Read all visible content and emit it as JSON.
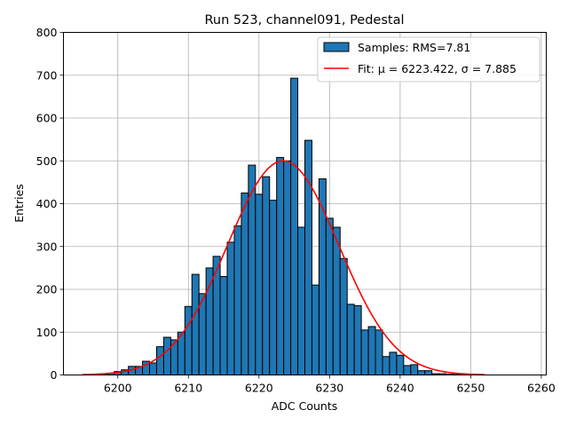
{
  "chart_data": {
    "type": "bar",
    "title": "Run 523, channel091, Pedestal",
    "xlabel": "ADC Counts",
    "ylabel": "Entries",
    "xlim": [
      6192.3,
      6260.7
    ],
    "ylim": [
      0,
      800
    ],
    "xticks": [
      6200,
      6210,
      6220,
      6230,
      6240,
      6250,
      6260
    ],
    "yticks": [
      0,
      100,
      200,
      300,
      400,
      500,
      600,
      700,
      800
    ],
    "grid": true,
    "legend_position": "top-right",
    "bin_width": 1,
    "bins": [
      6197,
      6198,
      6199,
      6200,
      6201,
      6202,
      6203,
      6204,
      6205,
      6206,
      6207,
      6208,
      6209,
      6210,
      6211,
      6212,
      6213,
      6214,
      6215,
      6216,
      6217,
      6218,
      6219,
      6220,
      6221,
      6222,
      6223,
      6224,
      6225,
      6226,
      6227,
      6228,
      6229,
      6230,
      6231,
      6232,
      6233,
      6234,
      6235,
      6236,
      6237,
      6238,
      6239,
      6240,
      6241,
      6242,
      6243,
      6244,
      6245,
      6246,
      6247,
      6248
    ],
    "values": [
      2,
      2,
      4,
      8,
      12,
      20,
      20,
      32,
      28,
      66,
      88,
      82,
      100,
      160,
      235,
      190,
      250,
      277,
      230,
      310,
      348,
      425,
      490,
      422,
      463,
      408,
      508,
      500,
      693,
      345,
      548,
      210,
      458,
      366,
      345,
      272,
      165,
      162,
      105,
      113,
      105,
      43,
      53,
      46,
      22,
      24,
      10,
      10,
      3,
      3,
      2,
      1
    ],
    "series": [
      {
        "name": "Samples: RMS=7.81",
        "kind": "histogram",
        "color": "#1f77b4",
        "edgecolor": "#000000"
      },
      {
        "name": "Fit: μ = 6223.422, σ = 7.885",
        "kind": "gaussian-fit",
        "color": "#ff0000",
        "mu": 6223.422,
        "sigma": 7.885,
        "amplitude": 500,
        "x_range": [
          6195,
          6252
        ]
      }
    ]
  }
}
